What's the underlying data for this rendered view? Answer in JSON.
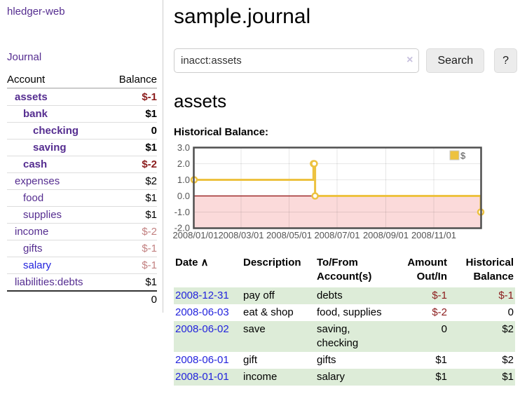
{
  "app": {
    "title": "hledger-web"
  },
  "nav": {
    "journal_label": "Journal"
  },
  "icons": {
    "sort_asc": "∧",
    "clear": "×"
  },
  "colors": {
    "accent_purple": "#552d90",
    "link_blue": "#2323dd",
    "negative_strong": "#8b1c1c",
    "negative_muted": "#c28181",
    "row_stripe_green": "#ddecd8",
    "chart_series_yellow": "#EDC240",
    "chart_negative_fill": "#fbdada",
    "chart_zero_line": "#8e0b0b"
  },
  "sidebar": {
    "header": {
      "account": "Account",
      "balance": "Balance"
    },
    "accounts": [
      {
        "name": "assets",
        "depth": 1,
        "balance": "$-1"
      },
      {
        "name": "bank",
        "depth": 2,
        "balance": "$1"
      },
      {
        "name": "checking",
        "depth": 3,
        "balance": "0"
      },
      {
        "name": "saving",
        "depth": 3,
        "balance": "$1"
      },
      {
        "name": "cash",
        "depth": 2,
        "balance": "$-2"
      },
      {
        "name": "expenses",
        "depth": 1,
        "balance": "$2"
      },
      {
        "name": "food",
        "depth": 2,
        "balance": "$1"
      },
      {
        "name": "supplies",
        "depth": 2,
        "balance": "$1"
      },
      {
        "name": "income",
        "depth": 1,
        "balance": "$-2"
      },
      {
        "name": "gifts",
        "depth": 2,
        "balance": "$-1"
      },
      {
        "name": "salary",
        "depth": 2,
        "balance": "$-1"
      },
      {
        "name": "liabilities:debts",
        "depth": 1,
        "balance": "$1"
      }
    ],
    "total": "0"
  },
  "main": {
    "title": "sample.journal",
    "search": {
      "value": "inacct:assets",
      "button_label": "Search",
      "help_label": "?"
    },
    "account_heading": "assets",
    "chart_label": "Historical Balance:"
  },
  "chart_data": {
    "type": "line",
    "title": "Historical Balance",
    "style": "step-after",
    "series": [
      {
        "name": "$",
        "color": "#EDC240",
        "points": [
          [
            "2008-01-01",
            1
          ],
          [
            "2008-06-01",
            2
          ],
          [
            "2008-06-02",
            2
          ],
          [
            "2008-06-03",
            0
          ],
          [
            "2008-12-31",
            -1
          ]
        ]
      }
    ],
    "ylim": [
      -2.0,
      3.0
    ],
    "yticks": [
      "3.0",
      "2.0",
      "1.0",
      "0.0",
      "-1.0",
      "-2.0"
    ],
    "xticks": [
      "2008/01/01",
      "2008/03/01",
      "2008/05/01",
      "2008/07/01",
      "2008/09/01",
      "2008/11/01"
    ],
    "xrange": [
      "2008-01-01",
      "2008-12-31"
    ],
    "legend": {
      "position": "top-right",
      "label": "$"
    },
    "grid": true,
    "negative_region_shaded": true
  },
  "register": {
    "headers": {
      "date": "Date",
      "description": "Description",
      "accounts_line1": "To/From",
      "accounts_line2": "Account(s)",
      "amount_line1": "Amount",
      "amount_line2": "Out/In",
      "balance_line1": "Historical",
      "balance_line2": "Balance"
    },
    "rows": [
      {
        "date": "2008-12-31",
        "description": "pay off",
        "accounts": "debts",
        "amount": "$-1",
        "balance": "$-1"
      },
      {
        "date": "2008-06-03",
        "description": "eat & shop",
        "accounts": "food, supplies",
        "amount": "$-2",
        "balance": "0"
      },
      {
        "date": "2008-06-02",
        "description": "save",
        "accounts": "saving, checking",
        "amount": "0",
        "balance": "$2"
      },
      {
        "date": "2008-06-01",
        "description": "gift",
        "accounts": "gifts",
        "amount": "$1",
        "balance": "$2"
      },
      {
        "date": "2008-01-01",
        "description": "income",
        "accounts": "salary",
        "amount": "$1",
        "balance": "$1"
      }
    ]
  }
}
